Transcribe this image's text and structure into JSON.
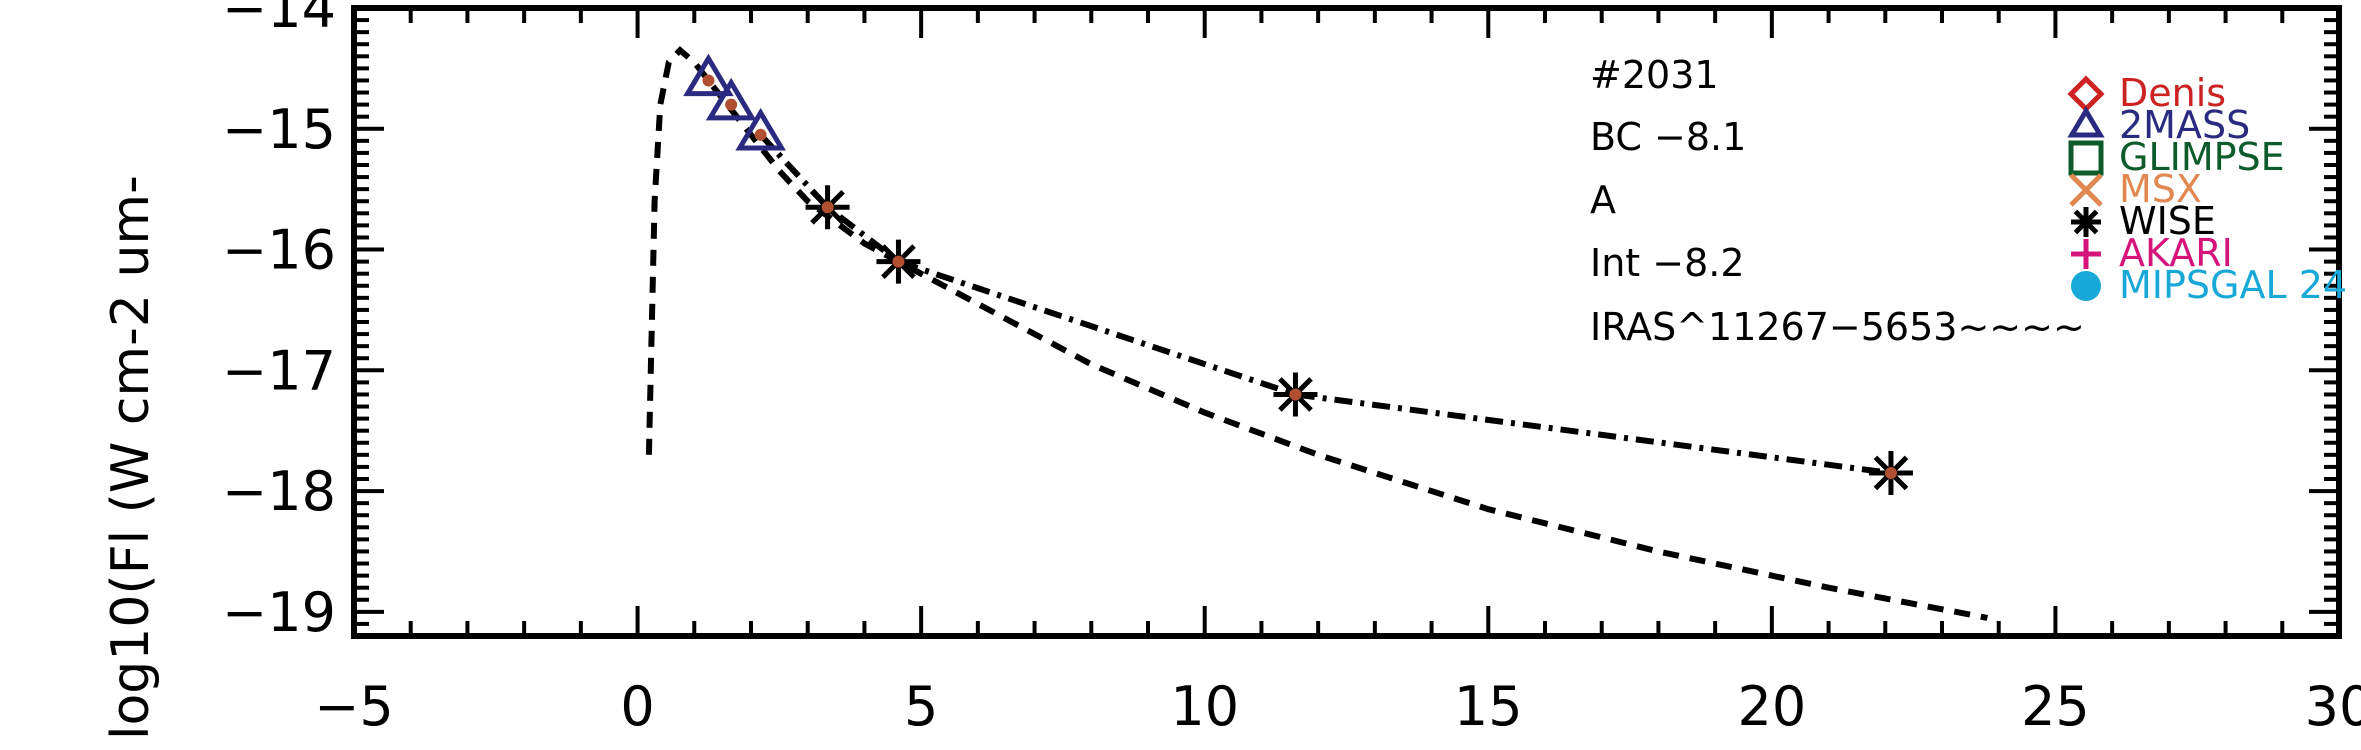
{
  "chart_data": {
    "type": "scatter",
    "title": "",
    "xlabel": "",
    "ylabel": "log10(Fl (W cm-2 um-",
    "xlim": [
      -5,
      30
    ],
    "ylim": [
      -19.2,
      -14
    ],
    "x_ticks": [
      -5,
      0,
      5,
      10,
      15,
      20,
      25,
      30
    ],
    "x_tick_labels": [
      "−5",
      "0",
      "5",
      "10",
      "15",
      "20",
      "25",
      "30"
    ],
    "y_ticks": [
      -14,
      -15,
      -16,
      -17,
      -18,
      -19
    ],
    "y_tick_labels": [
      "−14",
      "−15",
      "−16",
      "−17",
      "−18",
      "−19"
    ],
    "annotations": [
      "#2031",
      "BC −8.1",
      "A",
      "Int −8.2",
      "IRAS^11267−5653~~~~"
    ],
    "legend": [
      {
        "name": "Denis",
        "marker": "diamond",
        "color": "#cc2222"
      },
      {
        "name": "2MASS",
        "marker": "triangle",
        "color": "#2a2a80"
      },
      {
        "name": "GLIMPSE",
        "marker": "square",
        "color": "#0d5a2a"
      },
      {
        "name": "MSX",
        "marker": "x",
        "color": "#e08850"
      },
      {
        "name": "WISE",
        "marker": "asterisk",
        "color": "#000000"
      },
      {
        "name": "AKARI",
        "marker": "plus",
        "color": "#d4147a"
      },
      {
        "name": "MIPSGAL 24",
        "marker": "circle",
        "color": "#18a8d8"
      }
    ],
    "series": [
      {
        "name": "2MASS",
        "marker": "triangle",
        "color": "#2a2a80",
        "x": [
          1.25,
          1.65,
          2.17
        ],
        "y": [
          -14.6,
          -14.8,
          -15.05
        ]
      },
      {
        "name": "WISE",
        "marker": "asterisk",
        "color": "#000000",
        "x": [
          3.35,
          4.6,
          11.6,
          22.1
        ],
        "y": [
          -15.65,
          -16.1,
          -17.2,
          -17.85
        ]
      },
      {
        "marker": "dot",
        "color": "#b05030",
        "x": [
          1.25,
          1.65,
          2.17,
          3.35,
          4.6,
          11.6,
          22.1
        ],
        "y": [
          -14.6,
          -14.8,
          -15.05,
          -15.65,
          -16.1,
          -17.2,
          -17.85
        ]
      },
      {
        "line": "dashed",
        "color": "#000000",
        "x": [
          0.2,
          0.3,
          0.4,
          0.55,
          0.75,
          1.0,
          1.5,
          2.0,
          2.5,
          3.0,
          4.0,
          5.0,
          6.0,
          8.0,
          10.0,
          12.0,
          15.0,
          18.0,
          21.0,
          23.8
        ],
        "y": [
          -17.7,
          -15.6,
          -14.8,
          -14.45,
          -14.35,
          -14.45,
          -14.75,
          -15.05,
          -15.35,
          -15.6,
          -15.95,
          -16.2,
          -16.45,
          -16.95,
          -17.35,
          -17.7,
          -18.15,
          -18.5,
          -18.8,
          -19.05
        ]
      },
      {
        "line": "dashdot",
        "color": "#000000",
        "x": [
          2.17,
          3.35,
          4.6,
          11.6,
          22.1
        ],
        "y": [
          -15.05,
          -15.65,
          -16.1,
          -17.2,
          -17.85
        ]
      }
    ]
  }
}
